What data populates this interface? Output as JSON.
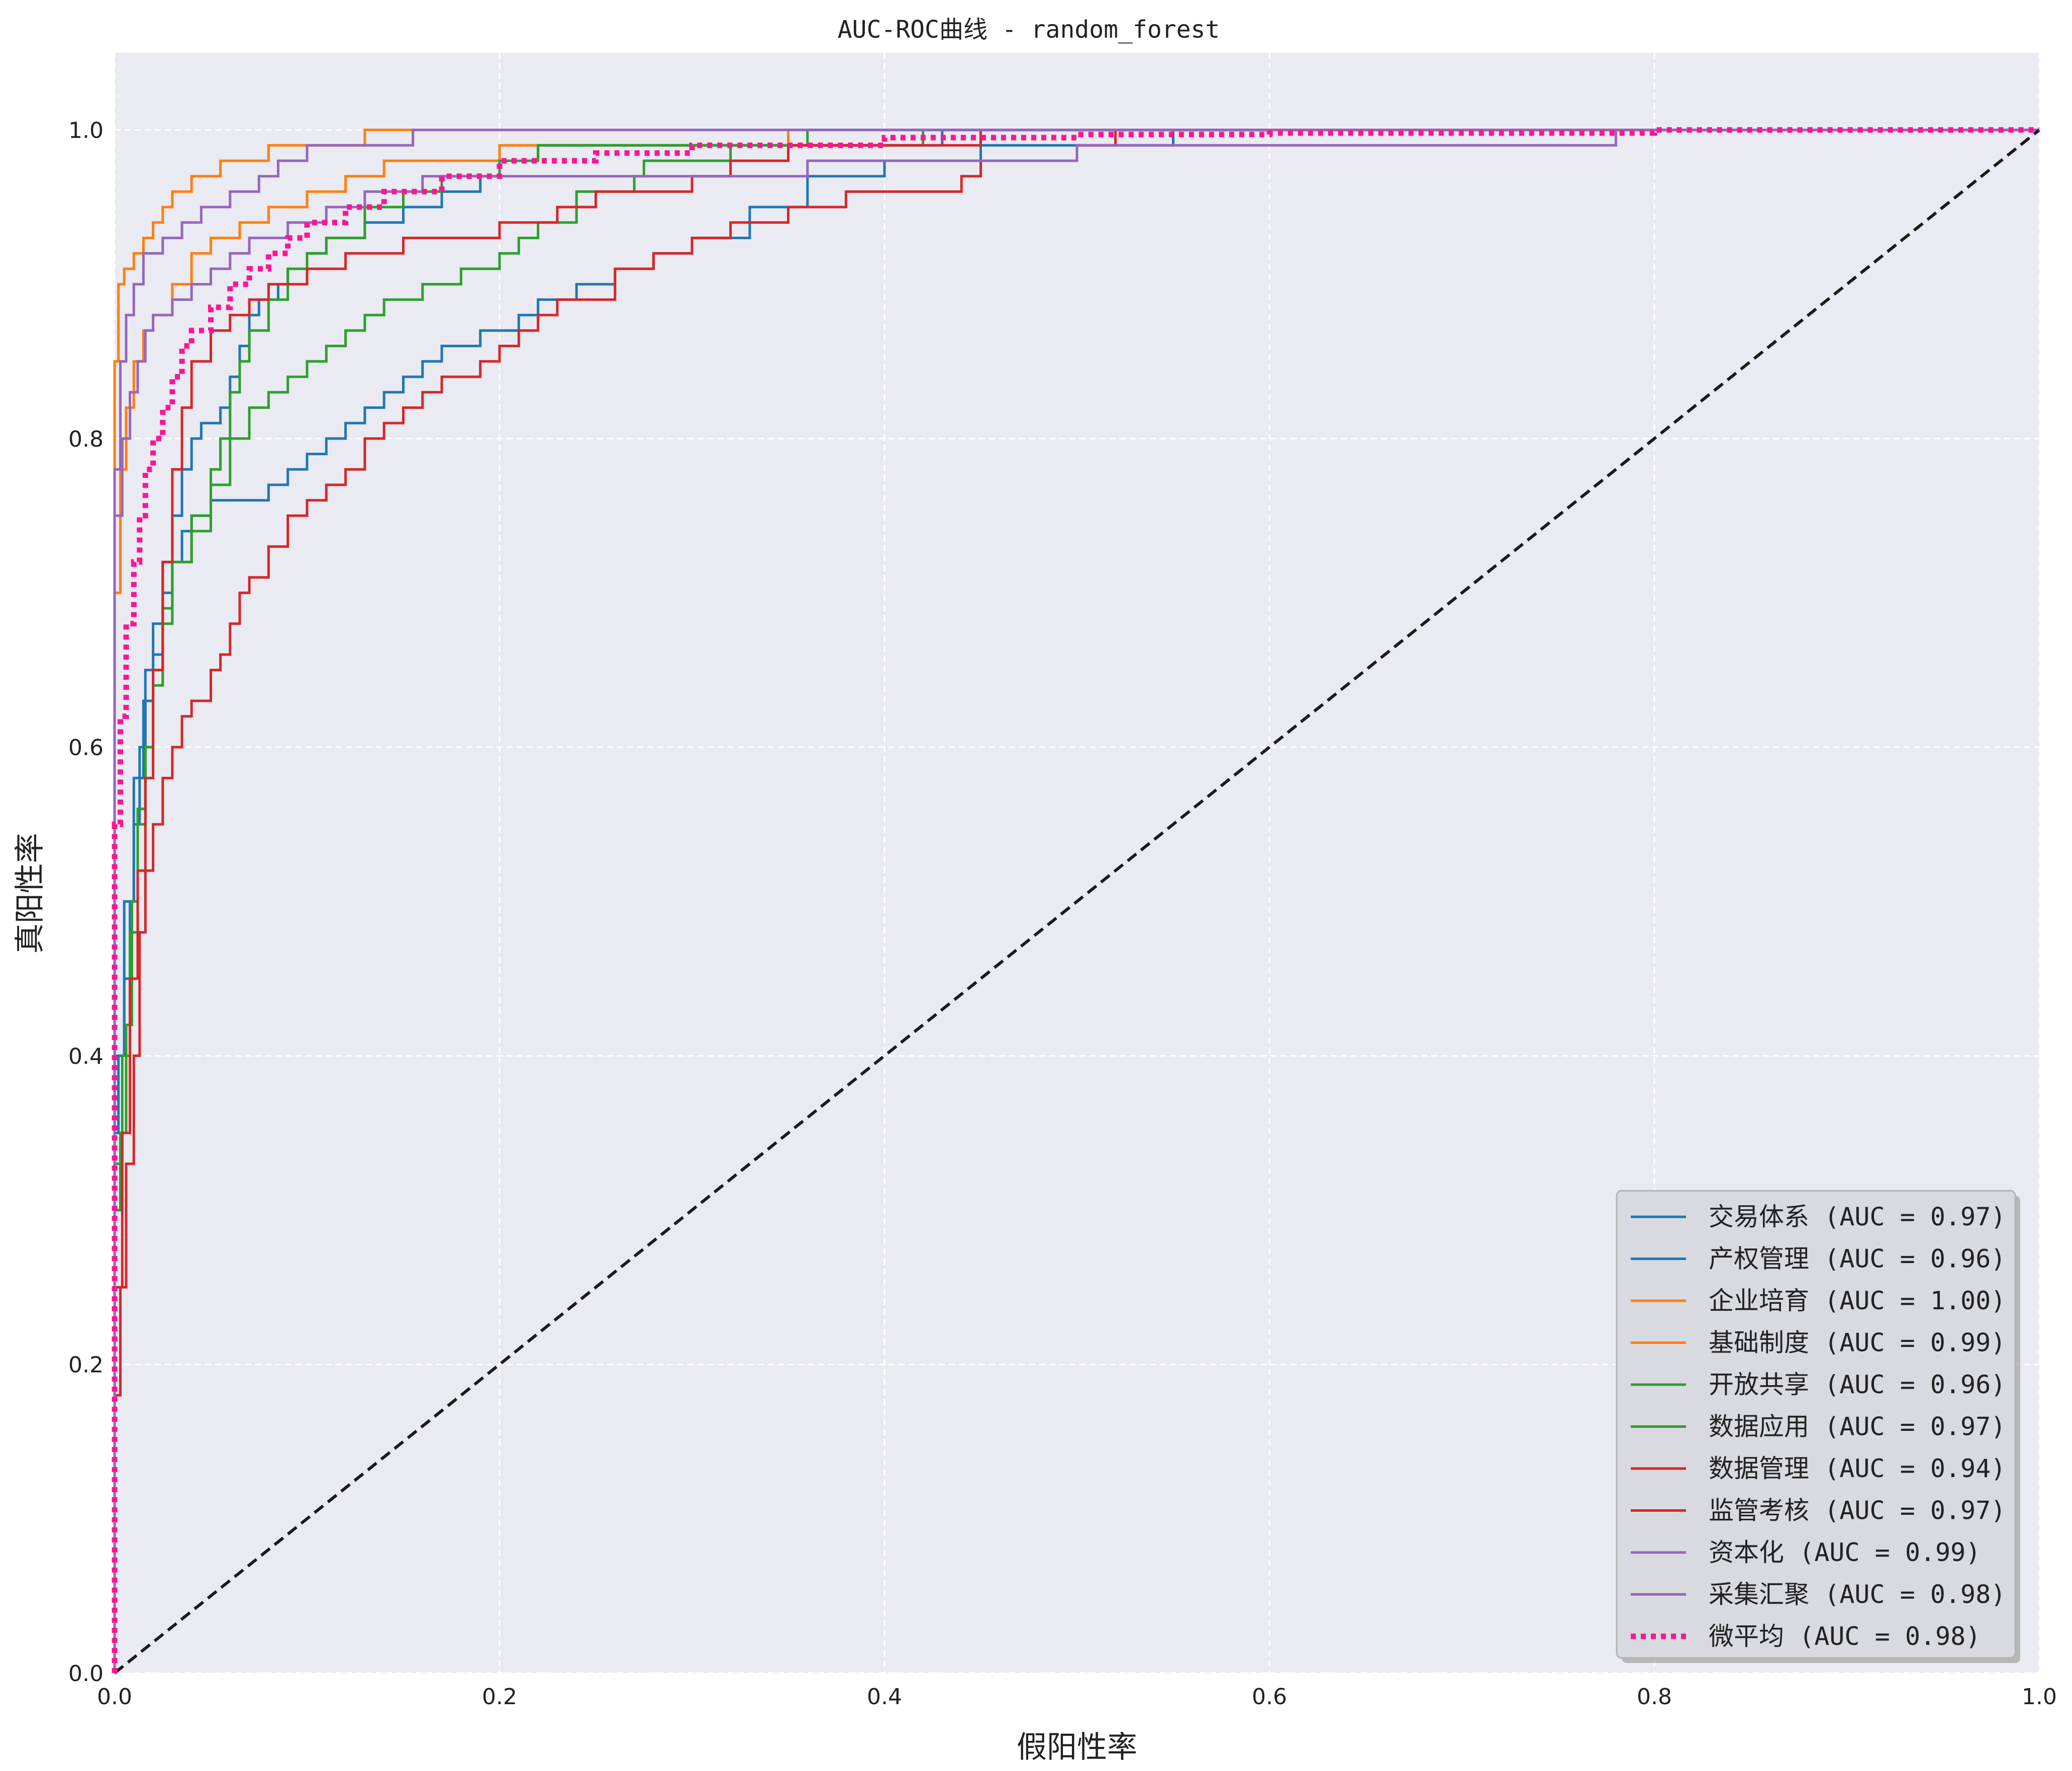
{
  "chart_data": {
    "type": "line",
    "title": "AUC-ROC曲线 - random_forest",
    "xlabel": "假阳性率",
    "ylabel": "真阳性率",
    "xlim": [
      0.0,
      1.0
    ],
    "ylim": [
      0.0,
      1.05
    ],
    "xticks": [
      "0.0",
      "0.2",
      "0.4",
      "0.6",
      "0.8",
      "1.0"
    ],
    "yticks": [
      "0.0",
      "0.2",
      "0.4",
      "0.6",
      "0.8",
      "1.0"
    ],
    "grid": true,
    "legend_position": "bottom-right",
    "background_color": "#eaeaf2",
    "series": [
      {
        "name": "交易体系 (AUC = 0.97)",
        "color": "#1f77b4",
        "style": "solid",
        "points": [
          [
            0,
            0
          ],
          [
            0,
            0.35
          ],
          [
            0.002,
            0.4
          ],
          [
            0.005,
            0.45
          ],
          [
            0.008,
            0.5
          ],
          [
            0.01,
            0.55
          ],
          [
            0.013,
            0.6
          ],
          [
            0.016,
            0.65
          ],
          [
            0.02,
            0.68
          ],
          [
            0.025,
            0.72
          ],
          [
            0.03,
            0.75
          ],
          [
            0.035,
            0.78
          ],
          [
            0.04,
            0.8
          ],
          [
            0.045,
            0.81
          ],
          [
            0.055,
            0.82
          ],
          [
            0.06,
            0.84
          ],
          [
            0.065,
            0.86
          ],
          [
            0.07,
            0.88
          ],
          [
            0.075,
            0.89
          ],
          [
            0.085,
            0.9
          ],
          [
            0.09,
            0.91
          ],
          [
            0.1,
            0.92
          ],
          [
            0.11,
            0.93
          ],
          [
            0.13,
            0.94
          ],
          [
            0.15,
            0.95
          ],
          [
            0.17,
            0.96
          ],
          [
            0.19,
            0.97
          ],
          [
            0.2,
            0.98
          ],
          [
            0.22,
            0.99
          ],
          [
            0.3,
            0.99
          ],
          [
            0.43,
            1.0
          ],
          [
            1.0,
            1.0
          ]
        ]
      },
      {
        "name": "产权管理 (AUC = 0.96)",
        "color": "#1f77b4",
        "style": "solid",
        "points": [
          [
            0,
            0
          ],
          [
            0,
            0.4
          ],
          [
            0.005,
            0.5
          ],
          [
            0.01,
            0.58
          ],
          [
            0.015,
            0.63
          ],
          [
            0.02,
            0.66
          ],
          [
            0.025,
            0.7
          ],
          [
            0.03,
            0.72
          ],
          [
            0.035,
            0.74
          ],
          [
            0.04,
            0.75
          ],
          [
            0.05,
            0.76
          ],
          [
            0.07,
            0.76
          ],
          [
            0.08,
            0.77
          ],
          [
            0.09,
            0.78
          ],
          [
            0.1,
            0.79
          ],
          [
            0.11,
            0.8
          ],
          [
            0.12,
            0.81
          ],
          [
            0.13,
            0.82
          ],
          [
            0.14,
            0.83
          ],
          [
            0.15,
            0.84
          ],
          [
            0.16,
            0.85
          ],
          [
            0.17,
            0.86
          ],
          [
            0.19,
            0.87
          ],
          [
            0.21,
            0.88
          ],
          [
            0.22,
            0.89
          ],
          [
            0.24,
            0.9
          ],
          [
            0.26,
            0.91
          ],
          [
            0.28,
            0.92
          ],
          [
            0.3,
            0.93
          ],
          [
            0.33,
            0.95
          ],
          [
            0.36,
            0.97
          ],
          [
            0.4,
            0.98
          ],
          [
            0.45,
            0.99
          ],
          [
            0.55,
            1.0
          ],
          [
            1.0,
            1.0
          ]
        ]
      },
      {
        "name": "企业培育 (AUC = 1.00)",
        "color": "#ff7f0e",
        "style": "solid",
        "points": [
          [
            0,
            0
          ],
          [
            0,
            0.85
          ],
          [
            0.002,
            0.9
          ],
          [
            0.005,
            0.91
          ],
          [
            0.01,
            0.92
          ],
          [
            0.015,
            0.93
          ],
          [
            0.02,
            0.94
          ],
          [
            0.025,
            0.95
          ],
          [
            0.03,
            0.96
          ],
          [
            0.04,
            0.97
          ],
          [
            0.055,
            0.98
          ],
          [
            0.08,
            0.99
          ],
          [
            0.13,
            1.0
          ],
          [
            1.0,
            1.0
          ]
        ]
      },
      {
        "name": "基础制度 (AUC = 0.99)",
        "color": "#ff7f0e",
        "style": "solid",
        "points": [
          [
            0,
            0
          ],
          [
            0,
            0.7
          ],
          [
            0.003,
            0.78
          ],
          [
            0.006,
            0.82
          ],
          [
            0.01,
            0.85
          ],
          [
            0.015,
            0.87
          ],
          [
            0.02,
            0.88
          ],
          [
            0.03,
            0.9
          ],
          [
            0.04,
            0.92
          ],
          [
            0.05,
            0.93
          ],
          [
            0.065,
            0.94
          ],
          [
            0.08,
            0.95
          ],
          [
            0.1,
            0.96
          ],
          [
            0.12,
            0.97
          ],
          [
            0.14,
            0.98
          ],
          [
            0.17,
            0.98
          ],
          [
            0.2,
            0.99
          ],
          [
            0.35,
            1.0
          ],
          [
            1.0,
            1.0
          ]
        ]
      },
      {
        "name": "开放共享 (AUC = 0.96)",
        "color": "#2ca02c",
        "style": "solid",
        "points": [
          [
            0,
            0
          ],
          [
            0,
            0.3
          ],
          [
            0.003,
            0.35
          ],
          [
            0.006,
            0.42
          ],
          [
            0.009,
            0.5
          ],
          [
            0.012,
            0.56
          ],
          [
            0.016,
            0.6
          ],
          [
            0.02,
            0.65
          ],
          [
            0.025,
            0.69
          ],
          [
            0.03,
            0.72
          ],
          [
            0.04,
            0.74
          ],
          [
            0.05,
            0.77
          ],
          [
            0.06,
            0.8
          ],
          [
            0.07,
            0.82
          ],
          [
            0.08,
            0.83
          ],
          [
            0.09,
            0.84
          ],
          [
            0.1,
            0.85
          ],
          [
            0.11,
            0.86
          ],
          [
            0.12,
            0.87
          ],
          [
            0.13,
            0.88
          ],
          [
            0.14,
            0.89
          ],
          [
            0.16,
            0.9
          ],
          [
            0.18,
            0.91
          ],
          [
            0.2,
            0.92
          ],
          [
            0.21,
            0.93
          ],
          [
            0.22,
            0.94
          ],
          [
            0.24,
            0.96
          ],
          [
            0.27,
            0.97
          ],
          [
            0.275,
            0.98
          ],
          [
            0.32,
            0.99
          ],
          [
            0.42,
            1.0
          ],
          [
            1.0,
            1.0
          ]
        ]
      },
      {
        "name": "数据应用 (AUC = 0.97)",
        "color": "#2ca02c",
        "style": "solid",
        "points": [
          [
            0,
            0
          ],
          [
            0,
            0.33
          ],
          [
            0.004,
            0.4
          ],
          [
            0.008,
            0.48
          ],
          [
            0.012,
            0.55
          ],
          [
            0.016,
            0.6
          ],
          [
            0.02,
            0.64
          ],
          [
            0.025,
            0.68
          ],
          [
            0.03,
            0.72
          ],
          [
            0.04,
            0.75
          ],
          [
            0.05,
            0.78
          ],
          [
            0.055,
            0.8
          ],
          [
            0.06,
            0.83
          ],
          [
            0.065,
            0.85
          ],
          [
            0.07,
            0.87
          ],
          [
            0.08,
            0.89
          ],
          [
            0.09,
            0.91
          ],
          [
            0.1,
            0.92
          ],
          [
            0.11,
            0.93
          ],
          [
            0.13,
            0.95
          ],
          [
            0.15,
            0.96
          ],
          [
            0.17,
            0.97
          ],
          [
            0.2,
            0.98
          ],
          [
            0.22,
            0.99
          ],
          [
            0.31,
            0.99
          ],
          [
            0.36,
            1.0
          ],
          [
            1.0,
            1.0
          ]
        ]
      },
      {
        "name": "数据管理 (AUC = 0.94)",
        "color": "#d62728",
        "style": "solid",
        "points": [
          [
            0,
            0
          ],
          [
            0,
            0.18
          ],
          [
            0.003,
            0.25
          ],
          [
            0.006,
            0.33
          ],
          [
            0.01,
            0.4
          ],
          [
            0.013,
            0.48
          ],
          [
            0.016,
            0.52
          ],
          [
            0.02,
            0.55
          ],
          [
            0.025,
            0.58
          ],
          [
            0.03,
            0.6
          ],
          [
            0.035,
            0.62
          ],
          [
            0.04,
            0.63
          ],
          [
            0.05,
            0.65
          ],
          [
            0.055,
            0.66
          ],
          [
            0.06,
            0.68
          ],
          [
            0.065,
            0.7
          ],
          [
            0.07,
            0.71
          ],
          [
            0.08,
            0.73
          ],
          [
            0.09,
            0.75
          ],
          [
            0.1,
            0.76
          ],
          [
            0.11,
            0.77
          ],
          [
            0.12,
            0.78
          ],
          [
            0.13,
            0.8
          ],
          [
            0.14,
            0.81
          ],
          [
            0.15,
            0.82
          ],
          [
            0.16,
            0.83
          ],
          [
            0.17,
            0.84
          ],
          [
            0.19,
            0.85
          ],
          [
            0.2,
            0.86
          ],
          [
            0.21,
            0.87
          ],
          [
            0.22,
            0.88
          ],
          [
            0.23,
            0.89
          ],
          [
            0.26,
            0.91
          ],
          [
            0.28,
            0.92
          ],
          [
            0.3,
            0.93
          ],
          [
            0.32,
            0.94
          ],
          [
            0.35,
            0.95
          ],
          [
            0.38,
            0.96
          ],
          [
            0.44,
            0.97
          ],
          [
            0.45,
            0.98
          ],
          [
            0.5,
            0.99
          ],
          [
            0.52,
            1.0
          ],
          [
            1.0,
            1.0
          ]
        ]
      },
      {
        "name": "监管考核 (AUC = 0.97)",
        "color": "#d62728",
        "style": "solid",
        "points": [
          [
            0,
            0
          ],
          [
            0,
            0.25
          ],
          [
            0.004,
            0.35
          ],
          [
            0.008,
            0.45
          ],
          [
            0.012,
            0.52
          ],
          [
            0.016,
            0.58
          ],
          [
            0.02,
            0.65
          ],
          [
            0.025,
            0.72
          ],
          [
            0.03,
            0.78
          ],
          [
            0.035,
            0.82
          ],
          [
            0.04,
            0.85
          ],
          [
            0.05,
            0.87
          ],
          [
            0.06,
            0.88
          ],
          [
            0.07,
            0.89
          ],
          [
            0.08,
            0.9
          ],
          [
            0.1,
            0.91
          ],
          [
            0.12,
            0.92
          ],
          [
            0.15,
            0.93
          ],
          [
            0.2,
            0.94
          ],
          [
            0.23,
            0.95
          ],
          [
            0.25,
            0.96
          ],
          [
            0.3,
            0.97
          ],
          [
            0.32,
            0.98
          ],
          [
            0.35,
            0.99
          ],
          [
            0.45,
            1.0
          ],
          [
            1.0,
            1.0
          ]
        ]
      },
      {
        "name": "资本化 (AUC = 0.99)",
        "color": "#9467bd",
        "style": "solid",
        "points": [
          [
            0,
            0
          ],
          [
            0,
            0.78
          ],
          [
            0.003,
            0.85
          ],
          [
            0.006,
            0.88
          ],
          [
            0.01,
            0.9
          ],
          [
            0.015,
            0.92
          ],
          [
            0.025,
            0.93
          ],
          [
            0.035,
            0.94
          ],
          [
            0.045,
            0.95
          ],
          [
            0.06,
            0.96
          ],
          [
            0.075,
            0.97
          ],
          [
            0.085,
            0.98
          ],
          [
            0.1,
            0.99
          ],
          [
            0.155,
            1.0
          ],
          [
            1.0,
            1.0
          ]
        ]
      },
      {
        "name": "采集汇聚 (AUC = 0.98)",
        "color": "#9467bd",
        "style": "solid",
        "points": [
          [
            0,
            0
          ],
          [
            0,
            0.75
          ],
          [
            0.004,
            0.8
          ],
          [
            0.008,
            0.83
          ],
          [
            0.012,
            0.85
          ],
          [
            0.016,
            0.87
          ],
          [
            0.02,
            0.88
          ],
          [
            0.03,
            0.89
          ],
          [
            0.04,
            0.9
          ],
          [
            0.05,
            0.91
          ],
          [
            0.06,
            0.92
          ],
          [
            0.07,
            0.93
          ],
          [
            0.09,
            0.94
          ],
          [
            0.11,
            0.95
          ],
          [
            0.13,
            0.96
          ],
          [
            0.16,
            0.97
          ],
          [
            0.36,
            0.98
          ],
          [
            0.5,
            0.99
          ],
          [
            0.78,
            0.99
          ],
          [
            0.78,
            1.0
          ],
          [
            1.0,
            1.0
          ]
        ]
      },
      {
        "name": "微平均 (AUC = 0.98)",
        "color": "#ff1493",
        "style": "dotted",
        "points": [
          [
            0,
            0
          ],
          [
            0,
            0.55
          ],
          [
            0.003,
            0.62
          ],
          [
            0.006,
            0.68
          ],
          [
            0.01,
            0.72
          ],
          [
            0.013,
            0.75
          ],
          [
            0.016,
            0.78
          ],
          [
            0.02,
            0.8
          ],
          [
            0.025,
            0.82
          ],
          [
            0.03,
            0.84
          ],
          [
            0.035,
            0.86
          ],
          [
            0.04,
            0.87
          ],
          [
            0.05,
            0.885
          ],
          [
            0.06,
            0.9
          ],
          [
            0.07,
            0.91
          ],
          [
            0.08,
            0.92
          ],
          [
            0.09,
            0.93
          ],
          [
            0.1,
            0.94
          ],
          [
            0.12,
            0.95
          ],
          [
            0.14,
            0.96
          ],
          [
            0.17,
            0.97
          ],
          [
            0.2,
            0.98
          ],
          [
            0.25,
            0.985
          ],
          [
            0.3,
            0.99
          ],
          [
            0.4,
            0.995
          ],
          [
            0.5,
            0.997
          ],
          [
            0.6,
            0.998
          ],
          [
            0.8,
            1.0
          ],
          [
            1.0,
            1.0
          ]
        ]
      },
      {
        "name": "",
        "color": "#1a1a1a",
        "style": "dashed",
        "points": [
          [
            0,
            0
          ],
          [
            1,
            1
          ]
        ]
      }
    ]
  }
}
